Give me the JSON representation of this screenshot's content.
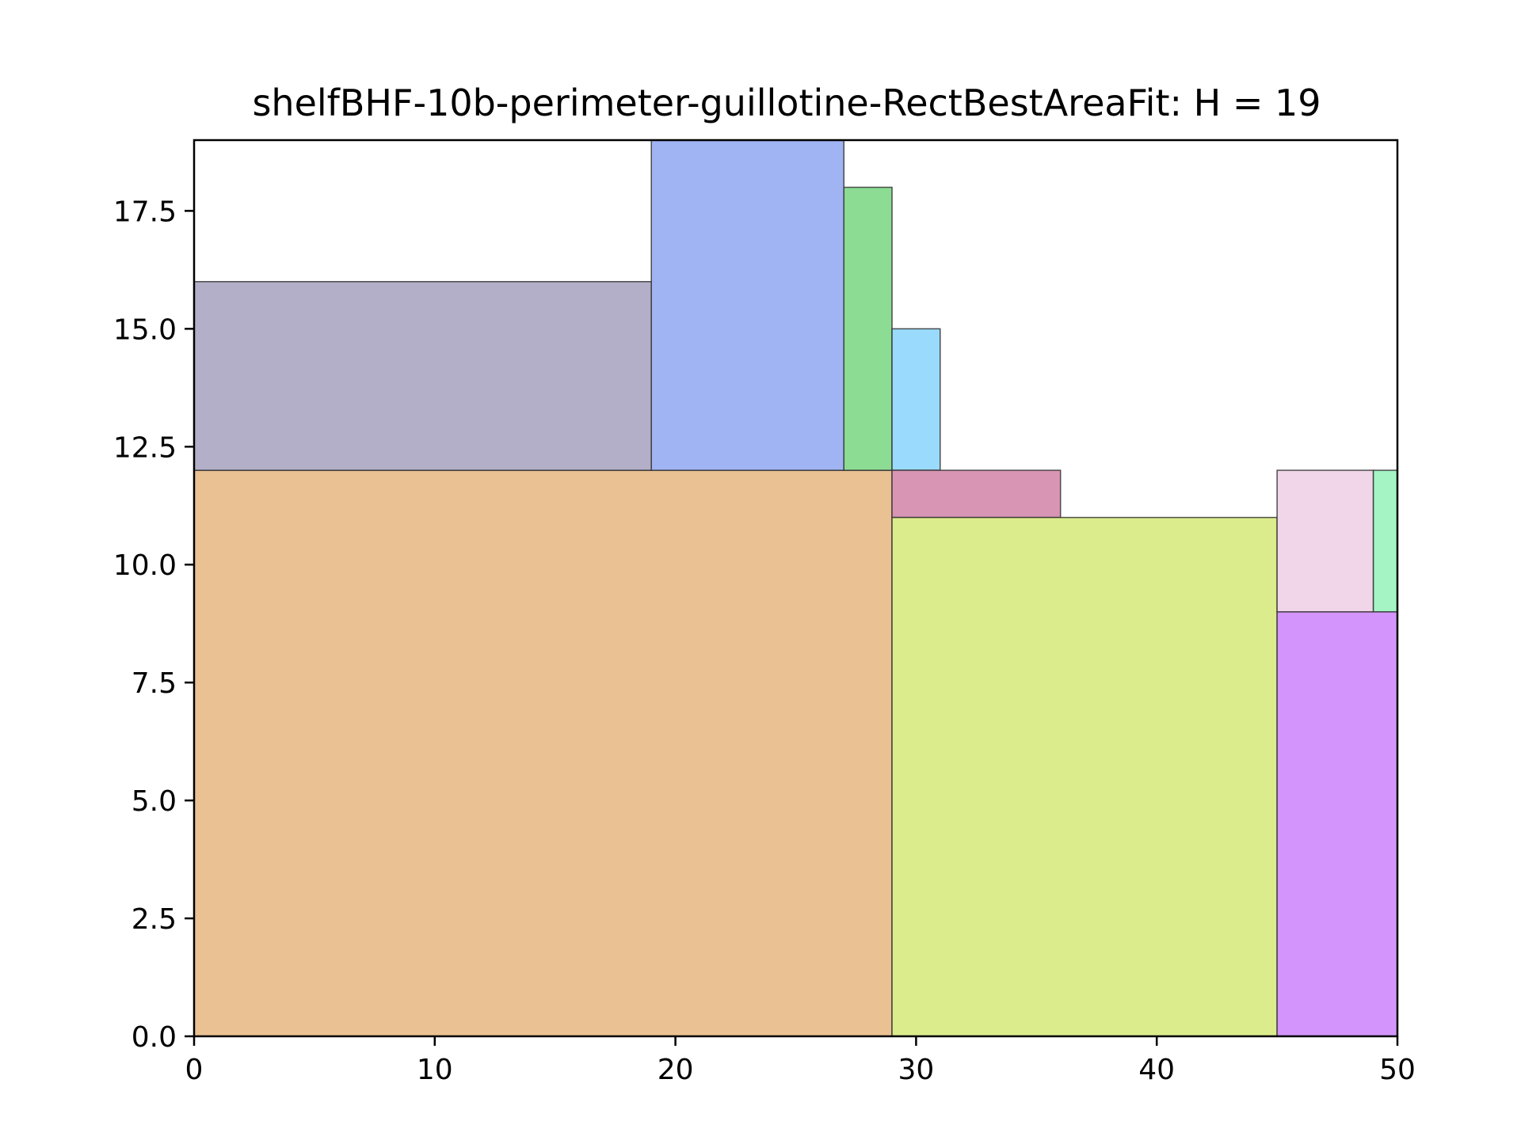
{
  "chart_data": {
    "type": "rectangle-packing",
    "title": "shelfBHF-10b-perimeter-guillotine-RectBestAreaFit: H = 19",
    "xlabel": "",
    "ylabel": "",
    "xlim": [
      0,
      50
    ],
    "ylim": [
      0,
      19
    ],
    "grid": false,
    "x_ticks": [
      "0",
      "10",
      "20",
      "30",
      "40",
      "50"
    ],
    "x_tick_values": [
      0,
      10,
      20,
      30,
      40,
      50
    ],
    "y_ticks": [
      "0.0",
      "2.5",
      "5.0",
      "7.5",
      "10.0",
      "12.5",
      "15.0",
      "17.5"
    ],
    "y_tick_values": [
      0,
      2.5,
      5,
      7.5,
      10,
      12.5,
      15,
      17.5
    ],
    "rectangles": [
      {
        "x": 0,
        "y": 0,
        "w": 29,
        "h": 12,
        "color": "#eac193"
      },
      {
        "x": 0,
        "y": 12,
        "w": 19,
        "h": 4,
        "color": "#b3afc8"
      },
      {
        "x": 19,
        "y": 12,
        "w": 8,
        "h": 7,
        "color": "#a0b4f3"
      },
      {
        "x": 27,
        "y": 12,
        "w": 2,
        "h": 6,
        "color": "#8cdc94"
      },
      {
        "x": 29,
        "y": 12,
        "w": 2,
        "h": 3,
        "color": "#9adafc"
      },
      {
        "x": 29,
        "y": 11,
        "w": 7,
        "h": 1,
        "color": "#d995b4"
      },
      {
        "x": 29,
        "y": 0,
        "w": 16,
        "h": 11,
        "color": "#dbec8c"
      },
      {
        "x": 45,
        "y": 0,
        "w": 5,
        "h": 9,
        "color": "#d395fc"
      },
      {
        "x": 45,
        "y": 9,
        "w": 4,
        "h": 3,
        "color": "#f0d6e8"
      },
      {
        "x": 49,
        "y": 9,
        "w": 1,
        "h": 3,
        "color": "#a4f4c4"
      }
    ]
  }
}
